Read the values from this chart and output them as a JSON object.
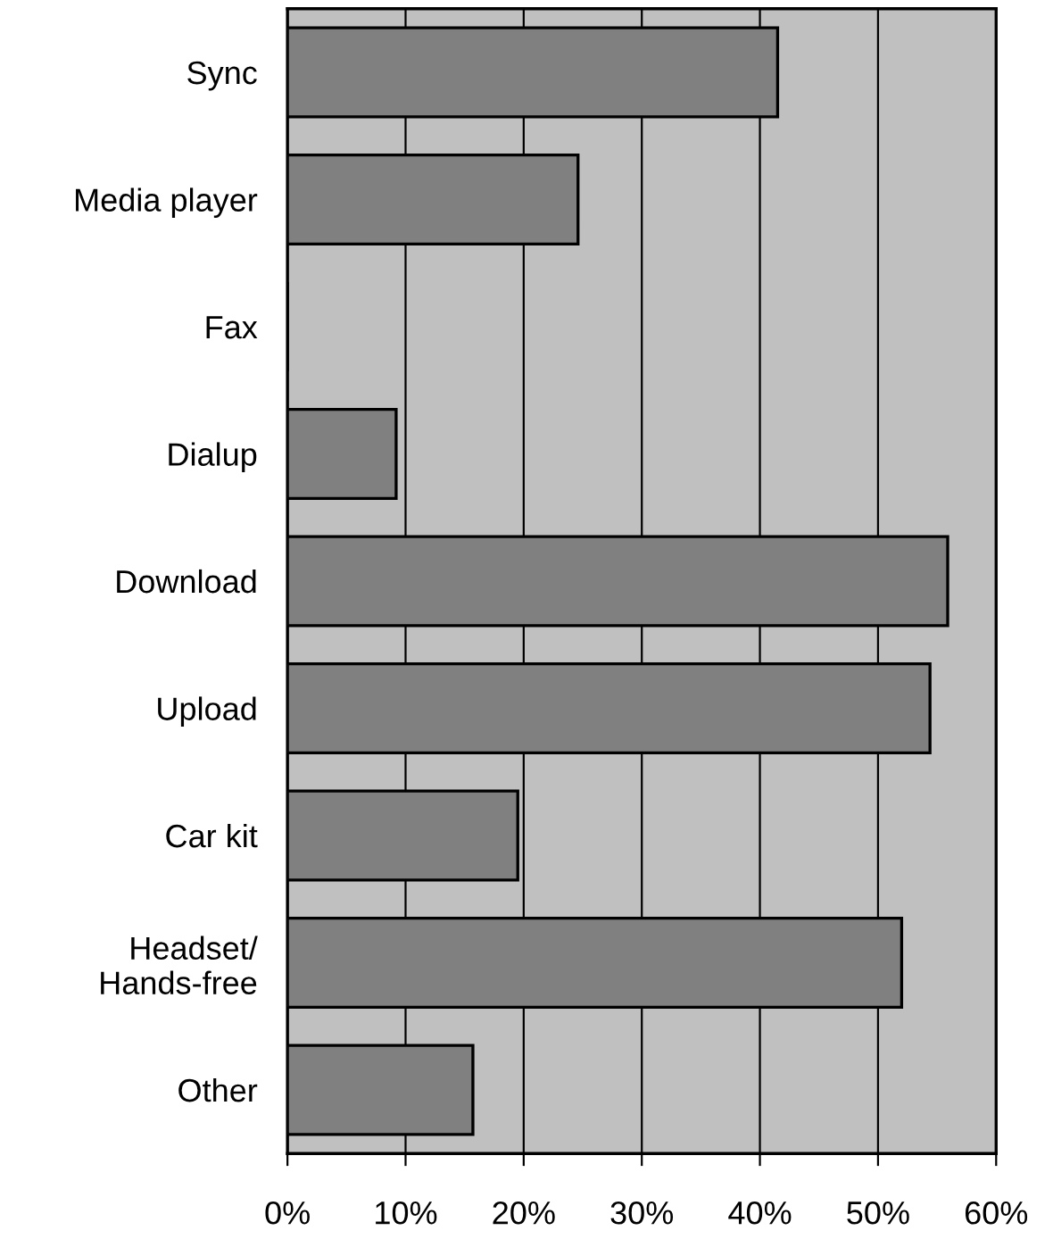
{
  "chart_data": {
    "type": "bar",
    "orientation": "horizontal",
    "categories": [
      "Sync",
      "Media player",
      "Fax",
      "Dialup",
      "Download",
      "Upload",
      "Car kit",
      "Headset/\nHands-free",
      "Other"
    ],
    "values": [
      41.5,
      24.6,
      0,
      9.2,
      55.9,
      54.4,
      19.5,
      52.0,
      15.7
    ],
    "color": "#808080",
    "xlim": [
      0,
      60
    ],
    "xticks": [
      {
        "value": 0,
        "label": "0%"
      },
      {
        "value": 10,
        "label": "10%"
      },
      {
        "value": 20,
        "label": "20%"
      },
      {
        "value": 30,
        "label": "30%"
      },
      {
        "value": 40,
        "label": "40%"
      },
      {
        "value": 50,
        "label": "50%"
      },
      {
        "value": 60,
        "label": "60%"
      }
    ],
    "grid": "x"
  }
}
